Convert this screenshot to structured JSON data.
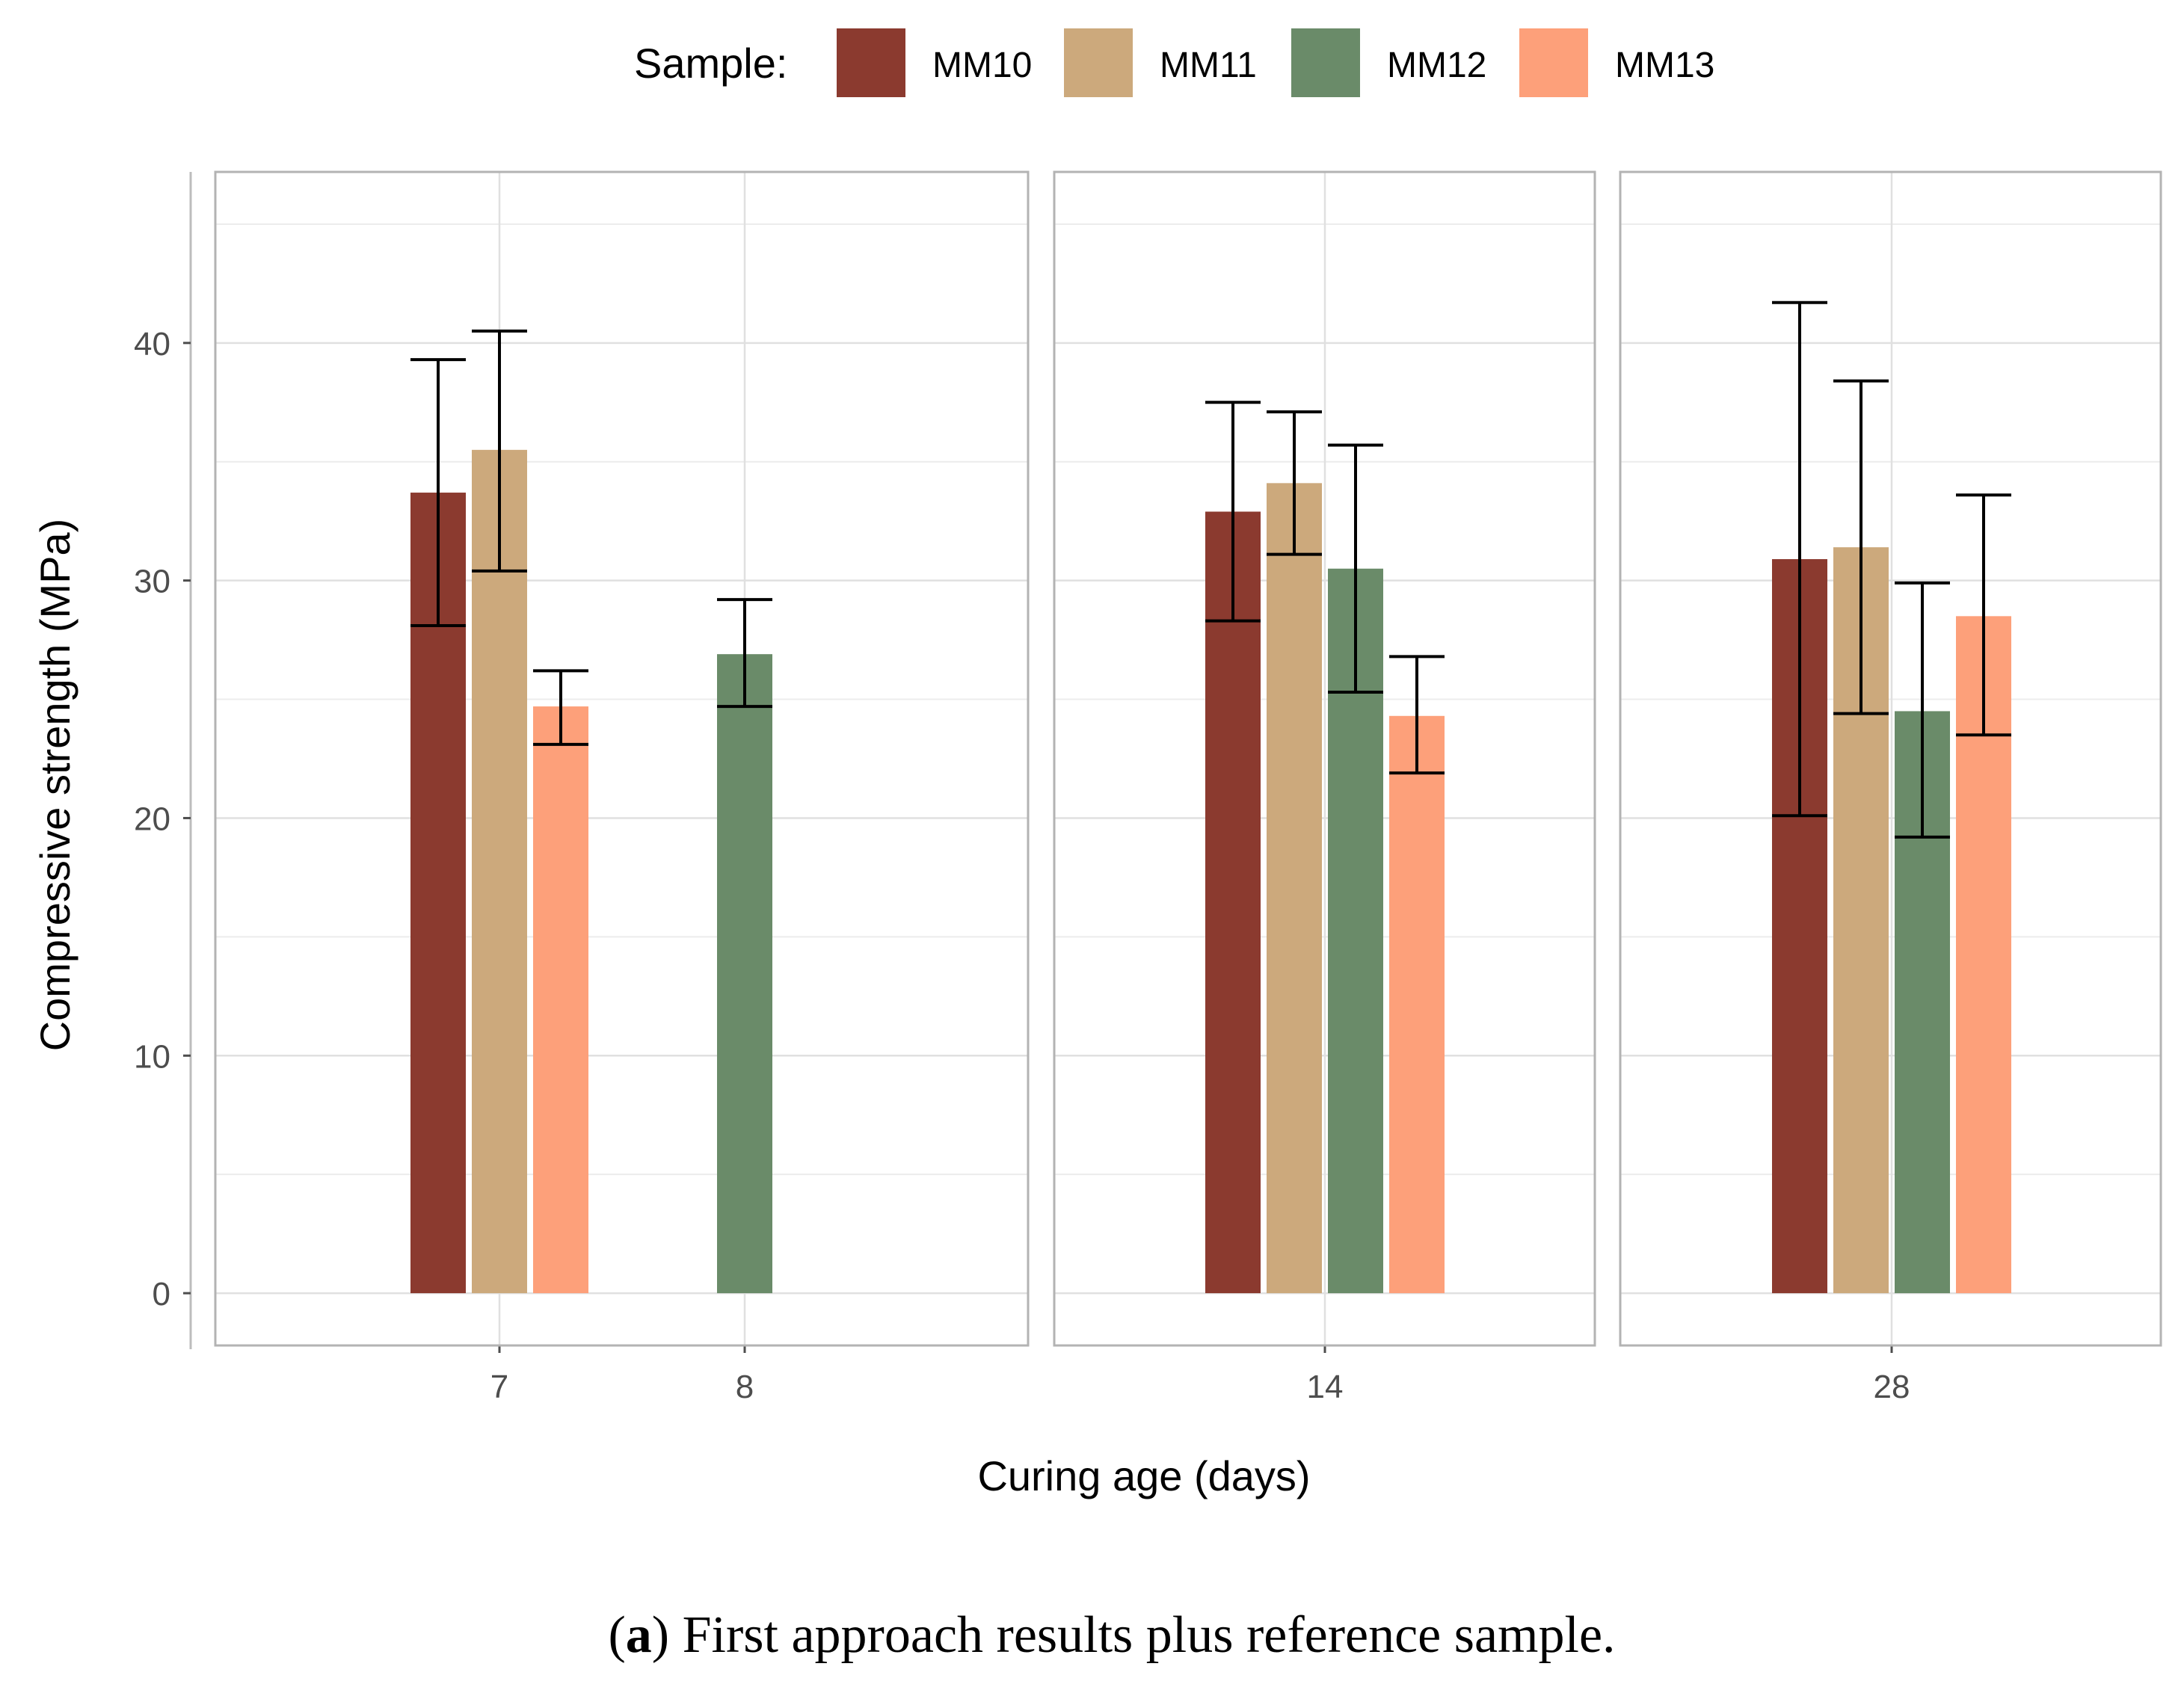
{
  "chart_data": {
    "type": "bar",
    "subtype": "faceted grouped bar with error bars",
    "legend": {
      "title": "Sample:",
      "position": "top",
      "entries": [
        {
          "name": "MM10",
          "color": "#8b3a2f"
        },
        {
          "name": "MM11",
          "color": "#cca97c"
        },
        {
          "name": "MM12",
          "color": "#6a8b69"
        },
        {
          "name": "MM13",
          "color": "#fda07a"
        }
      ]
    },
    "ylabel": "Compressive strength (MPa)",
    "xlabel": "Curing age (days)",
    "ylim": [
      -2.2,
      47.2
    ],
    "yticks": [
      0,
      10,
      20,
      30,
      40
    ],
    "grid": true,
    "facets": [
      {
        "categories": [
          "7",
          "8"
        ],
        "points": [
          {
            "category": "7",
            "sample": "MM10",
            "value": 33.7,
            "err_low": 28.1,
            "err_high": 39.3
          },
          {
            "category": "7",
            "sample": "MM11",
            "value": 35.5,
            "err_low": 30.4,
            "err_high": 40.5
          },
          {
            "category": "7",
            "sample": "MM13",
            "value": 24.7,
            "err_low": 23.1,
            "err_high": 26.2
          },
          {
            "category": "8",
            "sample": "MM12",
            "value": 26.9,
            "err_low": 24.7,
            "err_high": 29.2
          }
        ]
      },
      {
        "categories": [
          "14"
        ],
        "points": [
          {
            "category": "14",
            "sample": "MM10",
            "value": 32.9,
            "err_low": 28.3,
            "err_high": 37.5
          },
          {
            "category": "14",
            "sample": "MM11",
            "value": 34.1,
            "err_low": 31.1,
            "err_high": 37.1
          },
          {
            "category": "14",
            "sample": "MM12",
            "value": 30.5,
            "err_low": 25.3,
            "err_high": 35.7
          },
          {
            "category": "14",
            "sample": "MM13",
            "value": 24.3,
            "err_low": 21.9,
            "err_high": 26.8
          }
        ]
      },
      {
        "categories": [
          "28"
        ],
        "points": [
          {
            "category": "28",
            "sample": "MM10",
            "value": 30.9,
            "err_low": 20.1,
            "err_high": 41.7
          },
          {
            "category": "28",
            "sample": "MM11",
            "value": 31.4,
            "err_low": 24.4,
            "err_high": 38.4
          },
          {
            "category": "28",
            "sample": "MM12",
            "value": 24.5,
            "err_low": 19.2,
            "err_high": 29.9
          },
          {
            "category": "28",
            "sample": "MM13",
            "value": 28.5,
            "err_low": 23.5,
            "err_high": 33.6
          }
        ]
      }
    ]
  },
  "caption": {
    "label": "a",
    "text": " First approach results plus reference sample."
  }
}
